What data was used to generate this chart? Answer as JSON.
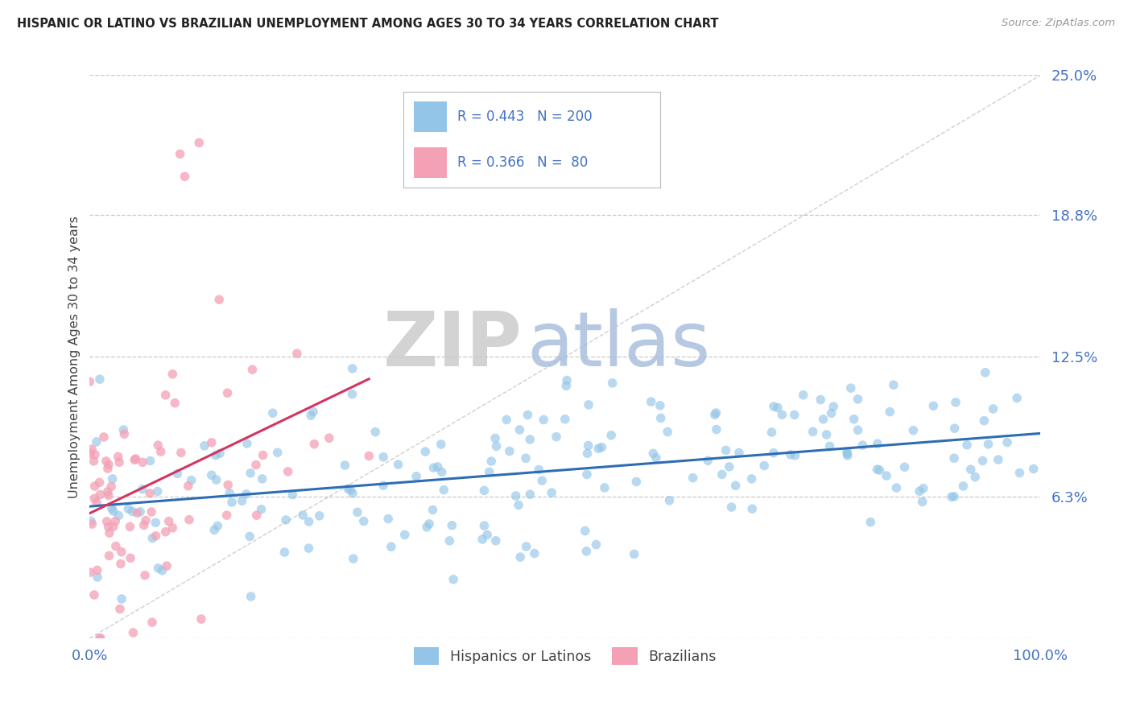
{
  "title": "HISPANIC OR LATINO VS BRAZILIAN UNEMPLOYMENT AMONG AGES 30 TO 34 YEARS CORRELATION CHART",
  "source": "Source: ZipAtlas.com",
  "ylabel": "Unemployment Among Ages 30 to 34 years",
  "xlim": [
    0,
    100
  ],
  "ylim": [
    0,
    25
  ],
  "yticks": [
    0,
    6.3,
    12.5,
    18.8,
    25.0
  ],
  "ytick_labels": [
    "",
    "6.3%",
    "12.5%",
    "18.8%",
    "25.0%"
  ],
  "xtick_labels": [
    "0.0%",
    "100.0%"
  ],
  "blue_R": 0.443,
  "blue_N": 200,
  "pink_R": 0.366,
  "pink_N": 80,
  "blue_color": "#92C5E8",
  "pink_color": "#F4A0B5",
  "blue_line_color": "#2E6DB4",
  "pink_line_color": "#D43560",
  "legend_blue_label": "Hispanics or Latinos",
  "legend_pink_label": "Brazilians",
  "watermark_zip": "ZIP",
  "watermark_atlas": "atlas",
  "watermark_zip_color": "#CCCCCC",
  "watermark_atlas_color": "#AABFDD",
  "background_color": "#FFFFFF",
  "grid_color": "#BBBBBB",
  "title_color": "#222222",
  "axis_label_color": "#444444",
  "tick_label_color": "#4472C4",
  "stat_label_color": "#4472C4"
}
